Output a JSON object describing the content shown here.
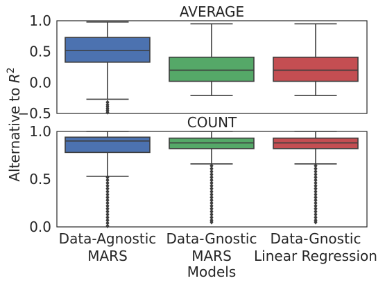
{
  "chart_data": [
    {
      "type": "boxplot",
      "title": "AVERAGE",
      "ylabel": "Alternative to R²",
      "ylim": [
        -0.5,
        1.0
      ],
      "yticks": [
        "1.0",
        "0.5",
        "0.0",
        "−0.5"
      ],
      "ytick_values": [
        1.0,
        0.5,
        0.0,
        -0.5
      ],
      "categories": [
        "Data-Agnostic\nMARS",
        "Data-Gnostic\nMARS",
        "Data-Gnostic\nLinear Regression"
      ],
      "boxes": [
        {
          "whislo": -0.27,
          "q1": 0.33,
          "med": 0.52,
          "q3": 0.73,
          "whishi": 0.98,
          "fliers": [
            -0.32,
            -0.36,
            -0.39,
            -0.42,
            -0.45,
            -0.48
          ],
          "color": "#4c72b0"
        },
        {
          "whislo": -0.21,
          "q1": 0.02,
          "med": 0.2,
          "q3": 0.41,
          "whishi": 0.95,
          "fliers": [],
          "color": "#55a868"
        },
        {
          "whislo": -0.21,
          "q1": 0.02,
          "med": 0.2,
          "q3": 0.41,
          "whishi": 0.95,
          "fliers": [],
          "color": "#c44e52"
        }
      ]
    },
    {
      "type": "boxplot",
      "title": "COUNT",
      "xlabel": "Models",
      "ylim": [
        0.0,
        1.0
      ],
      "yticks": [
        "1.0",
        "0.5",
        "0.0"
      ],
      "ytick_values": [
        1.0,
        0.5,
        0.0
      ],
      "categories": [
        "Data-Agnostic\nMARS",
        "Data-Gnostic\nMARS",
        "Data-Gnostic\nLinear Regression"
      ],
      "boxes": [
        {
          "whislo": 0.53,
          "q1": 0.78,
          "med": 0.9,
          "q3": 0.94,
          "whishi": 1.0,
          "fliers": [
            0.52,
            0.49,
            0.46,
            0.43,
            0.4,
            0.37,
            0.34,
            0.31,
            0.28,
            0.25,
            0.22,
            0.19,
            0.16,
            0.13,
            0.1,
            0.07,
            0.04,
            0.01
          ],
          "color": "#4c72b0"
        },
        {
          "whislo": 0.66,
          "q1": 0.82,
          "med": 0.88,
          "q3": 0.93,
          "whishi": 1.0,
          "fliers": [
            0.64,
            0.61,
            0.58,
            0.55,
            0.52,
            0.49,
            0.46,
            0.43,
            0.4,
            0.37,
            0.34,
            0.31,
            0.28,
            0.25,
            0.22,
            0.19,
            0.16,
            0.13,
            0.1,
            0.07,
            0.05
          ],
          "color": "#55a868"
        },
        {
          "whislo": 0.66,
          "q1": 0.82,
          "med": 0.88,
          "q3": 0.93,
          "whishi": 1.0,
          "fliers": [
            0.64,
            0.61,
            0.58,
            0.55,
            0.52,
            0.49,
            0.46,
            0.43,
            0.4,
            0.37,
            0.34,
            0.31,
            0.28,
            0.25,
            0.22,
            0.19,
            0.16,
            0.13,
            0.1,
            0.07,
            0.05
          ],
          "color": "#c44e52"
        }
      ]
    }
  ]
}
